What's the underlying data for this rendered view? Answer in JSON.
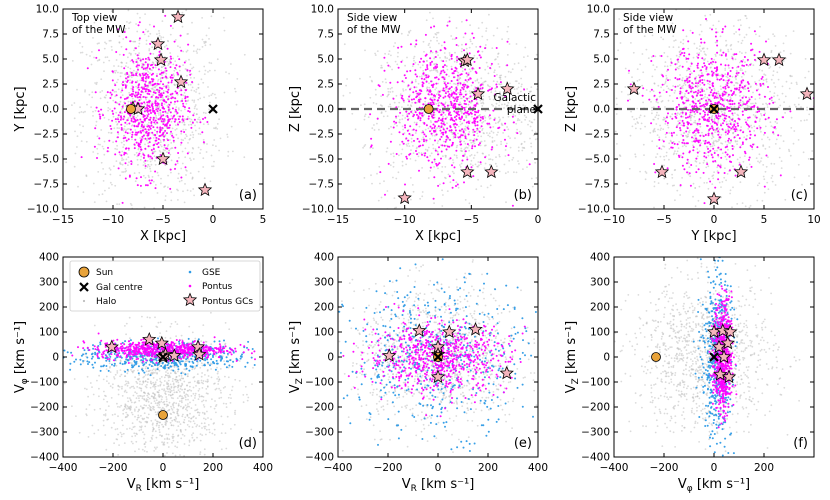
{
  "figure": {
    "colors": {
      "halo": "#bdbdbd",
      "gse": "#2e9be6",
      "pontus": "#ff00ff",
      "sun": "#e8a33a",
      "star_fill": "#f5b5bd",
      "gal_centre": "#000000",
      "plane_line": "#666666"
    },
    "legend": {
      "entries": [
        {
          "label": "Sun",
          "marker": "circle"
        },
        {
          "label": "GSE",
          "marker": "dot-blue"
        },
        {
          "label": "Gal centre",
          "marker": "cross"
        },
        {
          "label": "Pontus",
          "marker": "dot-magenta"
        },
        {
          "label": "Halo",
          "marker": "dot-grey"
        },
        {
          "label": "Pontus GCs",
          "marker": "star"
        }
      ]
    }
  },
  "chart_data": [
    {
      "type": "scatter",
      "panel_label": "(a)",
      "annotation": "Top view\nof the MW",
      "xlabel": "X [kpc]",
      "ylabel": "Y [kpc]",
      "xlim": [
        -15,
        5
      ],
      "ylim": [
        -10,
        10
      ],
      "xticks": [
        -15,
        -10,
        -5,
        0,
        5
      ],
      "yticks": [
        -10.0,
        -7.5,
        -5.0,
        -2.5,
        0.0,
        2.5,
        5.0,
        7.5,
        10.0
      ],
      "xtick_labels": [
        "−15",
        "−10",
        "−5",
        "0",
        "5"
      ],
      "ytick_labels": [
        "−10.0",
        "−7.5",
        "−5.0",
        "−2.5",
        "0.0",
        "2.5",
        "5.0",
        "7.5",
        "10.0"
      ],
      "halo_cloud": {
        "cx": -6,
        "cy": 0,
        "sx": 3.5,
        "sy": 4.5
      },
      "pontus_cloud": {
        "cx": -6.5,
        "cy": 0,
        "sx": 2.0,
        "sy": 3.2
      },
      "gse_cloud": null,
      "sun": [
        -8.2,
        0
      ],
      "gal_centre": [
        0,
        0
      ],
      "gcs": [
        [
          -3.5,
          9.2
        ],
        [
          -5.5,
          6.5
        ],
        [
          -5.2,
          4.9
        ],
        [
          -3.2,
          2.7
        ],
        [
          -8,
          0.1
        ],
        [
          -7.5,
          0.0
        ],
        [
          -5,
          -5
        ],
        [
          -0.8,
          -8.1
        ]
      ]
    },
    {
      "type": "scatter",
      "panel_label": "(b)",
      "annotation": "Side view\nof the MW",
      "extra_annotation": "Galactic\nplane",
      "plane_line": true,
      "xlabel": "X [kpc]",
      "ylabel": "Z [kpc]",
      "xlim": [
        -15,
        0
      ],
      "ylim": [
        -10,
        10
      ],
      "xticks": [
        -15,
        -10,
        -5,
        0
      ],
      "yticks": [
        -10.0,
        -7.5,
        -5.0,
        -2.5,
        0.0,
        2.5,
        5.0,
        7.5,
        10.0
      ],
      "xtick_labels": [
        "−15",
        "−10",
        "−5",
        "0"
      ],
      "ytick_labels": [
        "−10.0",
        "−7.5",
        "−5.0",
        "−2.5",
        "0.0",
        "2.5",
        "5.0",
        "7.5",
        "10.0"
      ],
      "halo_cloud": {
        "cx": -6,
        "cy": 0,
        "sx": 3.5,
        "sy": 4.2
      },
      "pontus_cloud": {
        "cx": -7,
        "cy": 0,
        "sx": 2.0,
        "sy": 3.2
      },
      "gse_cloud": null,
      "sun": [
        -8.2,
        0
      ],
      "gal_centre": [
        0,
        0
      ],
      "gcs": [
        [
          -5.5,
          4.8
        ],
        [
          -5.3,
          4.9
        ],
        [
          -2.3,
          2.0
        ],
        [
          -4.5,
          1.5
        ],
        [
          -5.3,
          -6.3
        ],
        [
          -3.5,
          -6.3
        ],
        [
          -10,
          -8.9
        ]
      ]
    },
    {
      "type": "scatter",
      "panel_label": "(c)",
      "annotation": "Side view\nof the MW",
      "plane_line": true,
      "xlabel": "Y [kpc]",
      "ylabel": "Z [kpc]",
      "xlim": [
        -10,
        10
      ],
      "ylim": [
        -10,
        10
      ],
      "xticks": [
        -10,
        -5,
        0,
        5,
        10
      ],
      "yticks": [
        -10.0,
        -7.5,
        -5.0,
        -2.5,
        0.0,
        2.5,
        5.0,
        7.5,
        10.0
      ],
      "xtick_labels": [
        "−10",
        "−5",
        "0",
        "5",
        "10"
      ],
      "ytick_labels": [
        "−10.0",
        "−7.5",
        "−5.0",
        "−2.5",
        "0.0",
        "2.5",
        "5.0",
        "7.5",
        "10.0"
      ],
      "halo_cloud": {
        "cx": 0,
        "cy": 0,
        "sx": 4.5,
        "sy": 4.2
      },
      "pontus_cloud": {
        "cx": 0,
        "cy": 0,
        "sx": 2.8,
        "sy": 3.2
      },
      "gse_cloud": null,
      "sun": [
        0,
        0
      ],
      "gal_centre": [
        0,
        0
      ],
      "gcs": [
        [
          -8,
          2
        ],
        [
          5,
          4.9
        ],
        [
          6.5,
          4.9
        ],
        [
          9.3,
          1.5
        ],
        [
          -5.2,
          -6.3
        ],
        [
          2.7,
          -6.3
        ],
        [
          0,
          -9
        ]
      ]
    },
    {
      "type": "scatter",
      "panel_label": "(d)",
      "xlabel": "V_R [km s⁻¹]",
      "ylabel": "V_φ [km s⁻¹]",
      "xlim": [
        -400,
        400
      ],
      "ylim": [
        -400,
        400
      ],
      "xticks": [
        -400,
        -200,
        0,
        200,
        400
      ],
      "yticks": [
        -400,
        -300,
        -200,
        -100,
        0,
        100,
        200,
        300,
        400
      ],
      "xtick_labels": [
        "−400",
        "−200",
        "0",
        "200",
        "400"
      ],
      "ytick_labels": [
        "−400",
        "−300",
        "−200",
        "−100",
        "0",
        "100",
        "200",
        "300",
        "400"
      ],
      "halo_cloud": {
        "cx": 0,
        "cy": -150,
        "sx": 130,
        "sy": 120
      },
      "gse_cloud": {
        "cx": 0,
        "cy": 0,
        "sx": 170,
        "sy": 30
      },
      "pontus_cloud": {
        "cx": 0,
        "cy": 30,
        "sx": 130,
        "sy": 18
      },
      "sun": [
        0,
        -232
      ],
      "gal_centre": [
        0,
        0
      ],
      "gcs": [
        [
          -205,
          40
        ],
        [
          -55,
          70
        ],
        [
          -5,
          55
        ],
        [
          10,
          10
        ],
        [
          45,
          5
        ],
        [
          140,
          40
        ],
        [
          145,
          10
        ],
        [
          0,
          0
        ]
      ]
    },
    {
      "type": "scatter",
      "panel_label": "(e)",
      "xlabel": "V_R [km s⁻¹]",
      "ylabel": "V_Z [km s⁻¹]",
      "xlim": [
        -400,
        400
      ],
      "ylim": [
        -400,
        400
      ],
      "xticks": [
        -400,
        -200,
        0,
        200,
        400
      ],
      "yticks": [
        -400,
        -300,
        -200,
        -100,
        0,
        100,
        200,
        300,
        400
      ],
      "xtick_labels": [
        "−400",
        "−200",
        "0",
        "200",
        "400"
      ],
      "ytick_labels": [
        "−400",
        "−300",
        "−200",
        "−100",
        "0",
        "100",
        "200",
        "300",
        "400"
      ],
      "halo_cloud": {
        "cx": 0,
        "cy": 0,
        "sx": 170,
        "sy": 140
      },
      "gse_cloud": {
        "cx": 0,
        "cy": 0,
        "sx": 180,
        "sy": 150
      },
      "pontus_cloud": {
        "cx": 0,
        "cy": 0,
        "sx": 140,
        "sy": 70
      },
      "sun": [
        0,
        0
      ],
      "gal_centre": [
        0,
        0
      ],
      "gcs": [
        [
          -195,
          5
        ],
        [
          -75,
          105
        ],
        [
          0,
          40
        ],
        [
          0,
          10
        ],
        [
          45,
          100
        ],
        [
          150,
          110
        ],
        [
          275,
          -65
        ],
        [
          0,
          -80
        ]
      ]
    },
    {
      "type": "scatter",
      "panel_label": "(f)",
      "xlabel": "V_φ [km s⁻¹]",
      "ylabel": "V_Z [km s⁻¹]",
      "xlim": [
        -400,
        400
      ],
      "ylim": [
        -400,
        400
      ],
      "xticks": [
        -400,
        -200,
        0,
        200
      ],
      "yticks": [
        -400,
        -300,
        -200,
        -100,
        0,
        100,
        200,
        300,
        400
      ],
      "xtick_labels": [
        "−400",
        "−200",
        "0",
        "200"
      ],
      "ytick_labels": [
        "−400",
        "−300",
        "−200",
        "−100",
        "0",
        "100",
        "200",
        "300",
        "400"
      ],
      "halo_cloud": {
        "cx": -40,
        "cy": 0,
        "sx": 140,
        "sy": 150
      },
      "gse_cloud": {
        "cx": 10,
        "cy": 0,
        "sx": 30,
        "sy": 170
      },
      "pontus_cloud": {
        "cx": 35,
        "cy": 0,
        "sx": 18,
        "sy": 110
      },
      "sun": [
        -232,
        0
      ],
      "gal_centre": [
        0,
        0
      ],
      "gcs": [
        [
          0,
          100
        ],
        [
          35,
          105
        ],
        [
          65,
          100
        ],
        [
          55,
          55
        ],
        [
          20,
          40
        ],
        [
          40,
          0
        ],
        [
          25,
          -70
        ],
        [
          60,
          -80
        ]
      ]
    }
  ]
}
